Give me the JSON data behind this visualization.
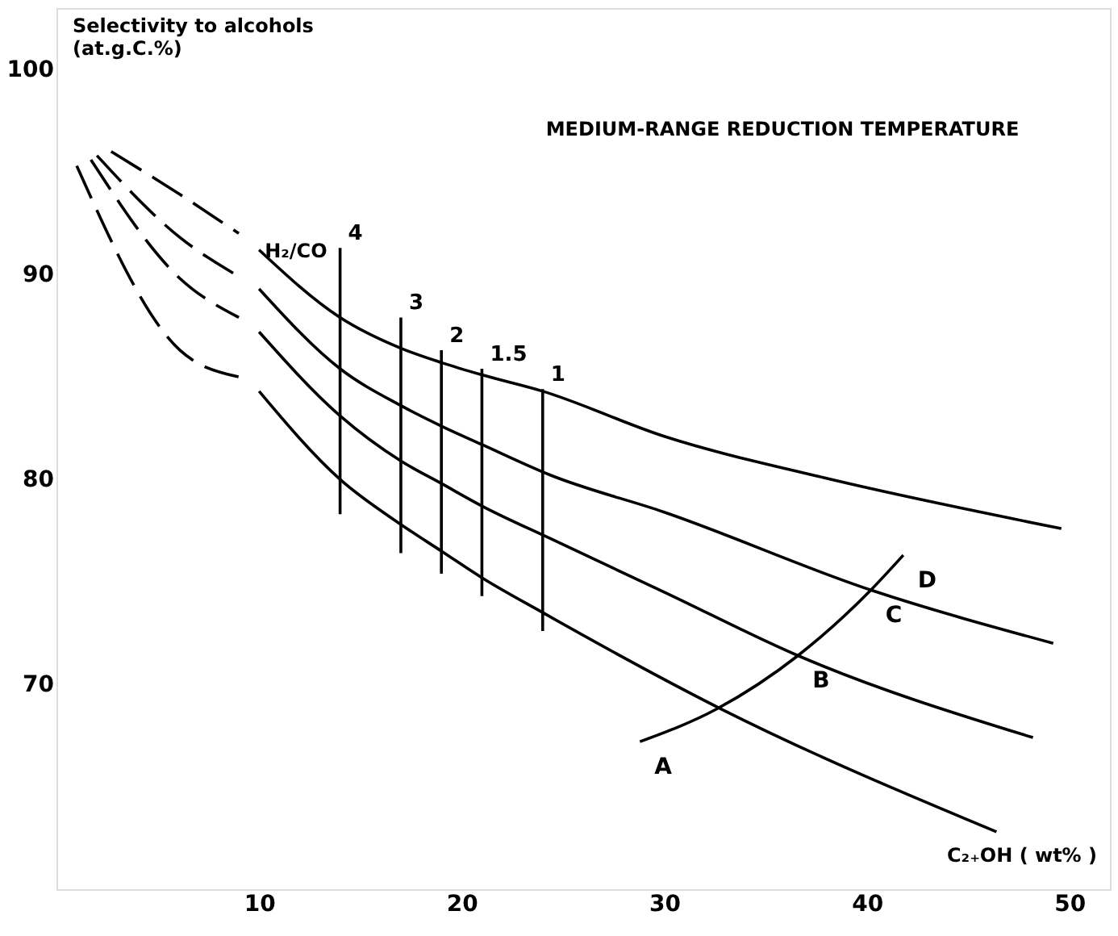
{
  "chart_data": {
    "type": "line",
    "title": "MEDIUM-RANGE REDUCTION TEMPERATURE",
    "xlabel": "C₂₊OH ( wt% )",
    "ylabel": "Selectivity to alcohols\n(at.g.C.%)",
    "legend_title": "H₂/CO",
    "xlim": [
      0,
      52
    ],
    "ylim": [
      60,
      103
    ],
    "xticks": [
      10,
      20,
      30,
      40,
      50
    ],
    "yticks": [
      70,
      80,
      90,
      100
    ],
    "grid": false,
    "marker": "none",
    "series": [
      {
        "color": "#000000",
        "line_style": "dashed",
        "x": [
          2.7,
          6.1,
          9
        ],
        "values": [
          96.0,
          93.9,
          92.0
        ]
      },
      {
        "color": "#000000",
        "line_style": "solid",
        "x": [
          10,
          14,
          17,
          19,
          21,
          24,
          30,
          37.8,
          49.6
        ],
        "values": [
          91.2,
          87.9,
          86.4,
          85.7,
          85.1,
          84.3,
          82.1,
          80.1,
          77.6
        ]
      },
      {
        "color": "#000000",
        "line_style": "dashed",
        "x": [
          2.0,
          6.1,
          9
        ],
        "values": [
          95.8,
          91.8,
          89.9
        ]
      },
      {
        "color": "#000000",
        "line_style": "solid",
        "x": [
          10,
          14,
          17,
          19,
          21,
          24.4,
          30,
          40.2,
          49.2
        ],
        "values": [
          89.3,
          85.4,
          83.6,
          82.6,
          81.7,
          80.2,
          78.4,
          74.6,
          72.0
        ]
      },
      {
        "color": "#000000",
        "line_style": "dashed",
        "x": [
          1.7,
          6.1,
          9
        ],
        "values": [
          95.6,
          89.8,
          87.9
        ]
      },
      {
        "color": "#000000",
        "line_style": "solid",
        "x": [
          10,
          14,
          17,
          19,
          21,
          24.4,
          30,
          36.6,
          48.2
        ],
        "values": [
          87.2,
          83.1,
          80.9,
          79.8,
          78.7,
          77.1,
          74.5,
          71.4,
          67.4
        ]
      },
      {
        "color": "#000000",
        "line_style": "dashed",
        "x": [
          1.0,
          6.1,
          9
        ],
        "values": [
          95.3,
          86.3,
          85.0
        ]
      },
      {
        "color": "#000000",
        "line_style": "solid",
        "x": [
          10,
          14,
          17,
          19,
          21,
          24,
          32.8,
          46.4
        ],
        "values": [
          84.3,
          80.0,
          77.8,
          76.5,
          75.2,
          73.5,
          68.8,
          62.8
        ]
      },
      {
        "name": "4",
        "color": "#000000",
        "line_style": "solid",
        "x": [
          14,
          14
        ],
        "values": [
          78.3,
          91.3
        ]
      },
      {
        "name": "3",
        "color": "#000000",
        "line_style": "solid",
        "x": [
          17,
          17
        ],
        "values": [
          76.4,
          87.9
        ]
      },
      {
        "name": "2",
        "color": "#000000",
        "line_style": "solid",
        "x": [
          19,
          19
        ],
        "values": [
          75.4,
          86.3
        ]
      },
      {
        "name": "1.5",
        "color": "#000000",
        "line_style": "solid",
        "x": [
          21,
          21
        ],
        "values": [
          74.3,
          85.4
        ]
      },
      {
        "name": "1",
        "color": "#000000",
        "line_style": "solid",
        "x": [
          24,
          24
        ],
        "values": [
          72.6,
          84.4
        ]
      },
      {
        "color": "#000000",
        "line_style": "solid",
        "x": [
          28.8,
          32.6,
          36.6,
          40.2,
          41.8
        ],
        "values": [
          67.2,
          68.8,
          71.4,
          74.6,
          76.3
        ]
      }
    ],
    "annotations": [
      {
        "text": "A",
        "x": 28.8,
        "y": 67.2
      },
      {
        "text": "B",
        "x": 36.6,
        "y": 71.4
      },
      {
        "text": "C",
        "x": 40.2,
        "y": 74.6
      },
      {
        "text": "D",
        "x": 41.8,
        "y": 76.3
      }
    ]
  }
}
